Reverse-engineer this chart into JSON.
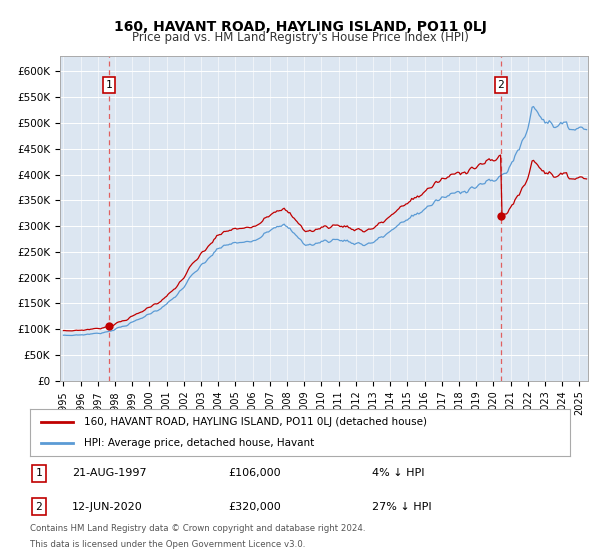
{
  "title": "160, HAVANT ROAD, HAYLING ISLAND, PO11 0LJ",
  "subtitle": "Price paid vs. HM Land Registry's House Price Index (HPI)",
  "sale1_year": 1997.64,
  "sale1_price": 106000,
  "sale2_year": 2020.44,
  "sale2_price": 320000,
  "legend_line1": "160, HAVANT ROAD, HAYLING ISLAND, PO11 0LJ (detached house)",
  "legend_line2": "HPI: Average price, detached house, Havant",
  "table_row1": [
    "1",
    "21-AUG-1997",
    "£106,000",
    "4% ↓ HPI"
  ],
  "table_row2": [
    "2",
    "12-JUN-2020",
    "£320,000",
    "27% ↓ HPI"
  ],
  "footnote1": "Contains HM Land Registry data © Crown copyright and database right 2024.",
  "footnote2": "This data is licensed under the Open Government Licence v3.0.",
  "ylim": [
    0,
    630000
  ],
  "xlim_start": 1994.8,
  "xlim_end": 2025.5,
  "yticks": [
    0,
    50000,
    100000,
    150000,
    200000,
    250000,
    300000,
    350000,
    400000,
    450000,
    500000,
    550000,
    600000
  ],
  "ytick_labels": [
    "£0",
    "£50K",
    "£100K",
    "£150K",
    "£200K",
    "£250K",
    "£300K",
    "£350K",
    "£400K",
    "£450K",
    "£500K",
    "£550K",
    "£600K"
  ],
  "xtick_years": [
    1995,
    1996,
    1997,
    1998,
    1999,
    2000,
    2001,
    2002,
    2003,
    2004,
    2005,
    2006,
    2007,
    2008,
    2009,
    2010,
    2011,
    2012,
    2013,
    2014,
    2015,
    2016,
    2017,
    2018,
    2019,
    2020,
    2021,
    2022,
    2023,
    2024,
    2025
  ],
  "hpi_color": "#5b9bd5",
  "sale_color": "#c00000",
  "vline_color": "#e06060",
  "bg_color": "#dce6f1",
  "fig_bg": "#ffffff"
}
